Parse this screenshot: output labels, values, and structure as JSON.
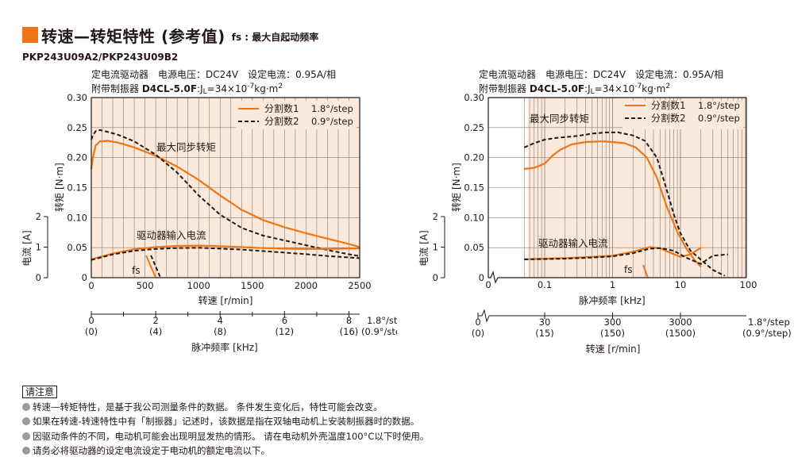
{
  "header": {
    "title": "转速—转矩特性 (参考值)",
    "subtitle": "fs : 最大自起动频率",
    "model": "PKP243U09A2/PKP243U09B2"
  },
  "left_conditions": {
    "line1": "定电流驱动器　电源电压：DC24V　设定电流：0.95A/相",
    "line2_prefix": "附带制振器",
    "line2_bold": "D4CL-5.0F",
    "line2_rest": ":J",
    "line2_sub": "L",
    "line2_eq": "=34×10",
    "line2_sup": "-7",
    "line2_unit": "kg·m",
    "line2_unit_sup": "2"
  },
  "right_conditions": {
    "line1": "定电流驱动器　电源电压：DC24V　设定电流：0.95A/相",
    "line2_prefix": "附带制振器",
    "line2_bold": "D4CL-5.0F",
    "line2_rest": ":J",
    "line2_sub": "L",
    "line2_eq": "=34×10",
    "line2_sup": "-7",
    "line2_unit": "kg·m",
    "line2_unit_sup": "2"
  },
  "notes": {
    "title": "请注意",
    "items": [
      "转速—转矩特性，是基于我公司测量条件的数据。 条件发生变化后，特性可能会改变。",
      "如果在转速-转速特性中有「制振器」记述时，该数据是指在双轴电动机上安装制振器时的数据。",
      "因驱动条件的不同，电动机可能会出现明显发热的情形。 请在电动机外壳温度100°C以下时使用。",
      "请务必将驱动器的设定电流设定于电动机的额定电流以下。"
    ]
  },
  "colors": {
    "accent": "#ee7518",
    "plot_bg": "#fbeadb",
    "grid": "#7a6a5e",
    "text": "#231815"
  },
  "chart_data": [
    {
      "type": "line",
      "x_scale": "linear",
      "xlabel": "转速 [r/min]",
      "xlim": [
        0,
        2500
      ],
      "x_ticks": [
        "0",
        "500",
        "1000",
        "1500",
        "2000",
        "2500"
      ],
      "ylabel_torque": "转矩 [N·m]",
      "ylim_torque": [
        0,
        0.3
      ],
      "y_ticks_torque": [
        "0",
        "0.05",
        "0.10",
        "0.15",
        "0.20",
        "0.25",
        "0.30"
      ],
      "ylabel_current": "电流 [A]",
      "ylim_current": [
        0,
        2
      ],
      "y_ticks_current": [
        "0",
        "1",
        "2"
      ],
      "sub_axis": {
        "label": "脉冲频率 [kHz]",
        "ticks_top": [
          "0",
          "2",
          "4",
          "6",
          "8"
        ],
        "ticks_bottom": [
          "(0)",
          "(4)",
          "(8)",
          "(12)",
          "(16)"
        ],
        "step_top": "1.8°/step",
        "step_bottom": "(0.9°/step)"
      },
      "annotations": [
        "最大同步转矩",
        "驱动器输入电流",
        "fs"
      ],
      "fs_x": 600,
      "legend": {
        "position": "top-right",
        "items": [
          {
            "label": "分割数1",
            "step": "1.8°/step",
            "style": "solid"
          },
          {
            "label": "分割数2",
            "step": "0.9°/step",
            "style": "dashed"
          }
        ]
      },
      "series": [
        {
          "name": "分割数1",
          "kind": "torque",
          "x": [
            0,
            15,
            40,
            80,
            150,
            250,
            400,
            600,
            800,
            1000,
            1200,
            1400,
            1600,
            1800,
            2000,
            2200,
            2400,
            2500
          ],
          "y": [
            0.181,
            0.2,
            0.22,
            0.227,
            0.228,
            0.225,
            0.217,
            0.203,
            0.185,
            0.163,
            0.137,
            0.113,
            0.096,
            0.084,
            0.074,
            0.065,
            0.056,
            0.051
          ]
        },
        {
          "name": "分割数2",
          "kind": "torque",
          "x": [
            0,
            15,
            40,
            80,
            150,
            250,
            400,
            600,
            800,
            1000,
            1200,
            1400,
            1600,
            1800,
            2000,
            2200,
            2400,
            2500
          ],
          "y": [
            0.23,
            0.237,
            0.244,
            0.246,
            0.243,
            0.238,
            0.227,
            0.205,
            0.175,
            0.137,
            0.105,
            0.083,
            0.07,
            0.062,
            0.054,
            0.046,
            0.039,
            0.036
          ]
        },
        {
          "name": "分割数1",
          "kind": "current",
          "x": [
            0,
            200,
            400,
            600,
            800,
            1000,
            1200,
            1400,
            1600,
            1800,
            2000,
            2200,
            2500
          ],
          "y": [
            0.6,
            0.79,
            0.93,
            1.0,
            1.04,
            1.05,
            1.03,
            1.0,
            0.97,
            0.95,
            0.94,
            0.94,
            0.96
          ]
        },
        {
          "name": "分割数2",
          "kind": "current",
          "x": [
            0,
            200,
            400,
            600,
            800,
            1000,
            1200,
            1400,
            1600,
            1800,
            2000,
            2200,
            2500
          ],
          "y": [
            0.58,
            0.76,
            0.88,
            0.94,
            0.97,
            0.98,
            0.95,
            0.92,
            0.87,
            0.82,
            0.77,
            0.71,
            0.64
          ]
        }
      ]
    },
    {
      "type": "line",
      "x_scale": "log",
      "xlabel": "脉冲频率 [kHz]",
      "xlim": [
        0.01,
        100
      ],
      "x_ticks": [
        "0.1",
        "1",
        "10",
        "100"
      ],
      "ylabel_torque": "转矩 [N·m]",
      "ylim_torque": [
        0,
        0.3
      ],
      "y_ticks_torque": [
        "0",
        "0.05",
        "0.10",
        "0.15",
        "0.20",
        "0.25",
        "0.30"
      ],
      "ylabel_current": "电流 [A]",
      "ylim_current": [
        0,
        2
      ],
      "y_ticks_current": [
        "0",
        "1",
        "2"
      ],
      "sub_axis": {
        "label": "转速 [r/min]",
        "ticks_top": [
          "0",
          "30",
          "300",
          "3000"
        ],
        "ticks_bottom": [
          "(0)",
          "(15)",
          "(150)",
          "(1500)"
        ],
        "step_top": "1.8°/step",
        "step_bottom": "(0.9°/step)"
      },
      "annotations": [
        "最大同步转矩",
        "驱动器输入电流",
        "fs"
      ],
      "fs_x": 3.5,
      "legend": {
        "position": "top-right",
        "items": [
          {
            "label": "分割数1",
            "step": "1.8°/step",
            "style": "solid"
          },
          {
            "label": "分割数2",
            "step": "0.9°/step",
            "style": "dashed"
          }
        ]
      },
      "series": [
        {
          "name": "分割数1",
          "kind": "torque",
          "x": [
            0.05,
            0.07,
            0.1,
            0.13,
            0.17,
            0.25,
            0.4,
            0.7,
            1.0,
            1.5,
            2.2,
            3.2,
            4.5,
            6.3,
            9.0,
            12,
            16,
            20
          ],
          "y": [
            0.181,
            0.183,
            0.19,
            0.203,
            0.213,
            0.222,
            0.226,
            0.227,
            0.226,
            0.224,
            0.217,
            0.2,
            0.167,
            0.118,
            0.076,
            0.05,
            0.03,
            0.018
          ]
        },
        {
          "name": "分割数2",
          "kind": "torque",
          "x": [
            0.05,
            0.07,
            0.1,
            0.15,
            0.2,
            0.3,
            0.5,
            0.8,
            1.2,
            2.0,
            3.0,
            4.5,
            6.0,
            8.0,
            10,
            14,
            20,
            30,
            45
          ],
          "y": [
            0.217,
            0.224,
            0.23,
            0.233,
            0.234,
            0.236,
            0.24,
            0.242,
            0.242,
            0.237,
            0.228,
            0.2,
            0.154,
            0.105,
            0.074,
            0.045,
            0.03,
            0.013,
            0.003
          ]
        },
        {
          "name": "分割数1",
          "kind": "current",
          "x": [
            0.05,
            0.1,
            0.2,
            0.5,
            1.0,
            2.0,
            3.5,
            5.0,
            7.0,
            10,
            14,
            20
          ],
          "y": [
            0.6,
            0.62,
            0.64,
            0.68,
            0.72,
            0.85,
            1.0,
            0.96,
            0.82,
            0.68,
            0.76,
            0.98
          ]
        },
        {
          "name": "分割数2",
          "kind": "current",
          "x": [
            0.05,
            0.1,
            0.2,
            0.5,
            1.0,
            2.0,
            3.5,
            5.0,
            8.0,
            12,
            20,
            30,
            50
          ],
          "y": [
            0.6,
            0.61,
            0.62,
            0.66,
            0.7,
            0.8,
            0.95,
            0.97,
            0.88,
            0.66,
            0.45,
            0.72,
            0.76
          ]
        }
      ]
    }
  ]
}
